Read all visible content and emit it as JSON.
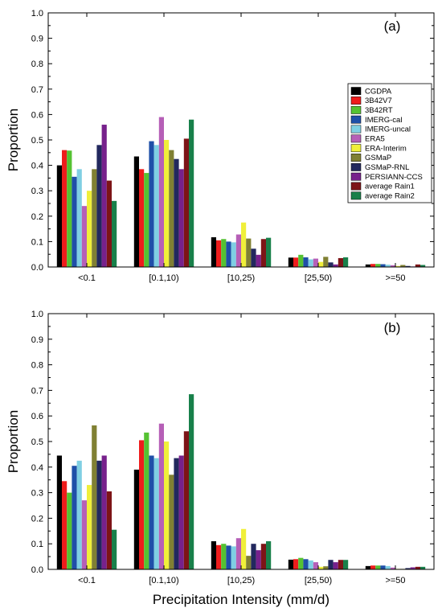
{
  "chart_data": [
    {
      "type": "bar",
      "panel_label": "(a)",
      "categories": [
        "<0.1",
        "[0.1,10)",
        "[10,25)",
        "[25,50)",
        ">=50"
      ],
      "ylabel": "Proportion",
      "xlabel": "",
      "ylim": [
        0,
        1.0
      ],
      "yticks": [
        "0.0",
        "0.1",
        "0.2",
        "0.3",
        "0.4",
        "0.5",
        "0.6",
        "0.7",
        "0.8",
        "0.9",
        "1.0"
      ],
      "grid": false,
      "legend": "right",
      "series": [
        {
          "name": "CGDPA",
          "color": "#000000",
          "values": [
            0.4,
            0.435,
            0.117,
            0.037,
            0.01
          ]
        },
        {
          "name": "3B42V7",
          "color": "#ee1c1c",
          "values": [
            0.46,
            0.385,
            0.105,
            0.037,
            0.012
          ]
        },
        {
          "name": "3B42RT",
          "color": "#55c232",
          "values": [
            0.458,
            0.37,
            0.11,
            0.048,
            0.012
          ]
        },
        {
          "name": "IMERG-cal",
          "color": "#1f4fa8",
          "values": [
            0.355,
            0.495,
            0.1,
            0.038,
            0.011
          ]
        },
        {
          "name": "IMERG-uncal",
          "color": "#7fcfe3",
          "values": [
            0.385,
            0.48,
            0.097,
            0.03,
            0.009
          ]
        },
        {
          "name": "ERA5",
          "color": "#b65fb7",
          "values": [
            0.24,
            0.59,
            0.128,
            0.033,
            0.007
          ]
        },
        {
          "name": "ERA-Interim",
          "color": "#f0ef3a",
          "values": [
            0.3,
            0.5,
            0.175,
            0.02,
            0.004
          ]
        },
        {
          "name": "GSMaP",
          "color": "#808033",
          "values": [
            0.385,
            0.46,
            0.112,
            0.04,
            0.008
          ]
        },
        {
          "name": "GSMaP-RNL",
          "color": "#22285e",
          "values": [
            0.48,
            0.425,
            0.072,
            0.018,
            0.004
          ]
        },
        {
          "name": "PERSIANN-CCS",
          "color": "#77218c",
          "values": [
            0.56,
            0.385,
            0.048,
            0.01,
            0.002
          ]
        },
        {
          "name": "average Rain1",
          "color": "#7d1417",
          "values": [
            0.34,
            0.505,
            0.11,
            0.035,
            0.01
          ]
        },
        {
          "name": "average Rain2",
          "color": "#18804a",
          "values": [
            0.26,
            0.58,
            0.115,
            0.038,
            0.008
          ]
        }
      ]
    },
    {
      "type": "bar",
      "panel_label": "(b)",
      "categories": [
        "<0.1",
        "[0.1,10)",
        "[10,25)",
        "[25,50)",
        ">=50"
      ],
      "ylabel": "Proportion",
      "xlabel": "Precipitation Intensity (mm/d)",
      "ylim": [
        0,
        1.0
      ],
      "yticks": [
        "0.0",
        "0.1",
        "0.2",
        "0.3",
        "0.4",
        "0.5",
        "0.6",
        "0.7",
        "0.8",
        "0.9",
        "1.0"
      ],
      "grid": false,
      "series": [
        {
          "name": "CGDPA",
          "color": "#000000",
          "values": [
            0.445,
            0.39,
            0.11,
            0.038,
            0.013
          ]
        },
        {
          "name": "3B42V7",
          "color": "#ee1c1c",
          "values": [
            0.345,
            0.505,
            0.095,
            0.04,
            0.015
          ]
        },
        {
          "name": "3B42RT",
          "color": "#55c232",
          "values": [
            0.3,
            0.535,
            0.1,
            0.045,
            0.015
          ]
        },
        {
          "name": "IMERG-cal",
          "color": "#1f4fa8",
          "values": [
            0.405,
            0.445,
            0.093,
            0.04,
            0.015
          ]
        },
        {
          "name": "IMERG-uncal",
          "color": "#7fcfe3",
          "values": [
            0.425,
            0.435,
            0.09,
            0.035,
            0.013
          ]
        },
        {
          "name": "ERA5",
          "color": "#b65fb7",
          "values": [
            0.27,
            0.57,
            0.122,
            0.028,
            0.007
          ]
        },
        {
          "name": "ERA-Interim",
          "color": "#f0ef3a",
          "values": [
            0.33,
            0.5,
            0.158,
            0.01,
            0.002
          ]
        },
        {
          "name": "GSMaP",
          "color": "#808033",
          "values": [
            0.563,
            0.37,
            0.053,
            0.012,
            0.002
          ]
        },
        {
          "name": "GSMaP-RNL",
          "color": "#22285e",
          "values": [
            0.425,
            0.435,
            0.1,
            0.037,
            0.005
          ]
        },
        {
          "name": "PERSIANN-CCS",
          "color": "#77218c",
          "values": [
            0.445,
            0.445,
            0.075,
            0.028,
            0.008
          ]
        },
        {
          "name": "average Rain1",
          "color": "#7d1417",
          "values": [
            0.305,
            0.54,
            0.1,
            0.037,
            0.01
          ]
        },
        {
          "name": "average Rain2",
          "color": "#18804a",
          "values": [
            0.155,
            0.685,
            0.11,
            0.037,
            0.01
          ]
        }
      ]
    }
  ]
}
